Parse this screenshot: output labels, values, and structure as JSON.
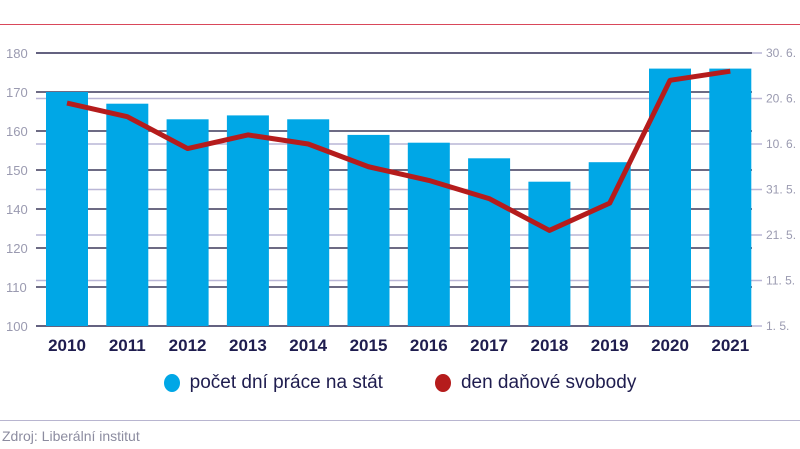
{
  "chart_data": {
    "type": "bar+line",
    "categories": [
      "2010",
      "2011",
      "2012",
      "2013",
      "2014",
      "2015",
      "2016",
      "2017",
      "2018",
      "2019",
      "2020",
      "2021"
    ],
    "series": [
      {
        "name": "počet dní práce na stát",
        "type": "bar",
        "axis": "left",
        "color": "#00a7e6",
        "values": [
          170,
          167,
          163,
          164,
          163,
          159,
          157,
          153,
          147,
          152,
          176,
          176
        ]
      },
      {
        "name": "den daňové svobody",
        "type": "line",
        "axis": "right",
        "color": "#b51c1c",
        "values": [
          "19. 6.",
          "16. 6.",
          "9. 6.",
          "12. 6.",
          "10. 6.",
          "5. 6.",
          "2. 6.",
          "29. 5.",
          "22. 5.",
          "28. 5.",
          "24. 6.",
          "26. 6."
        ]
      }
    ],
    "left_axis_ticks": [
      "180",
      "170",
      "160",
      "150",
      "140",
      "120",
      "110",
      "100"
    ],
    "right_axis_ticks": [
      "30. 6.",
      "20. 6.",
      "10. 6.",
      "31. 5.",
      "21. 5.",
      "11. 5.",
      "1. 5."
    ],
    "ylim_left": [
      100,
      180
    ],
    "ylim_right": [
      "1. 5.",
      "30. 6."
    ],
    "grid": true,
    "legend_position": "bottom"
  },
  "legend": [
    {
      "label": "počet dní práce na stát",
      "color": "#00a7e6"
    },
    {
      "label": "den daňové svobody",
      "color": "#b51c1c"
    }
  ],
  "source": "Zdroj: Liberální institut"
}
